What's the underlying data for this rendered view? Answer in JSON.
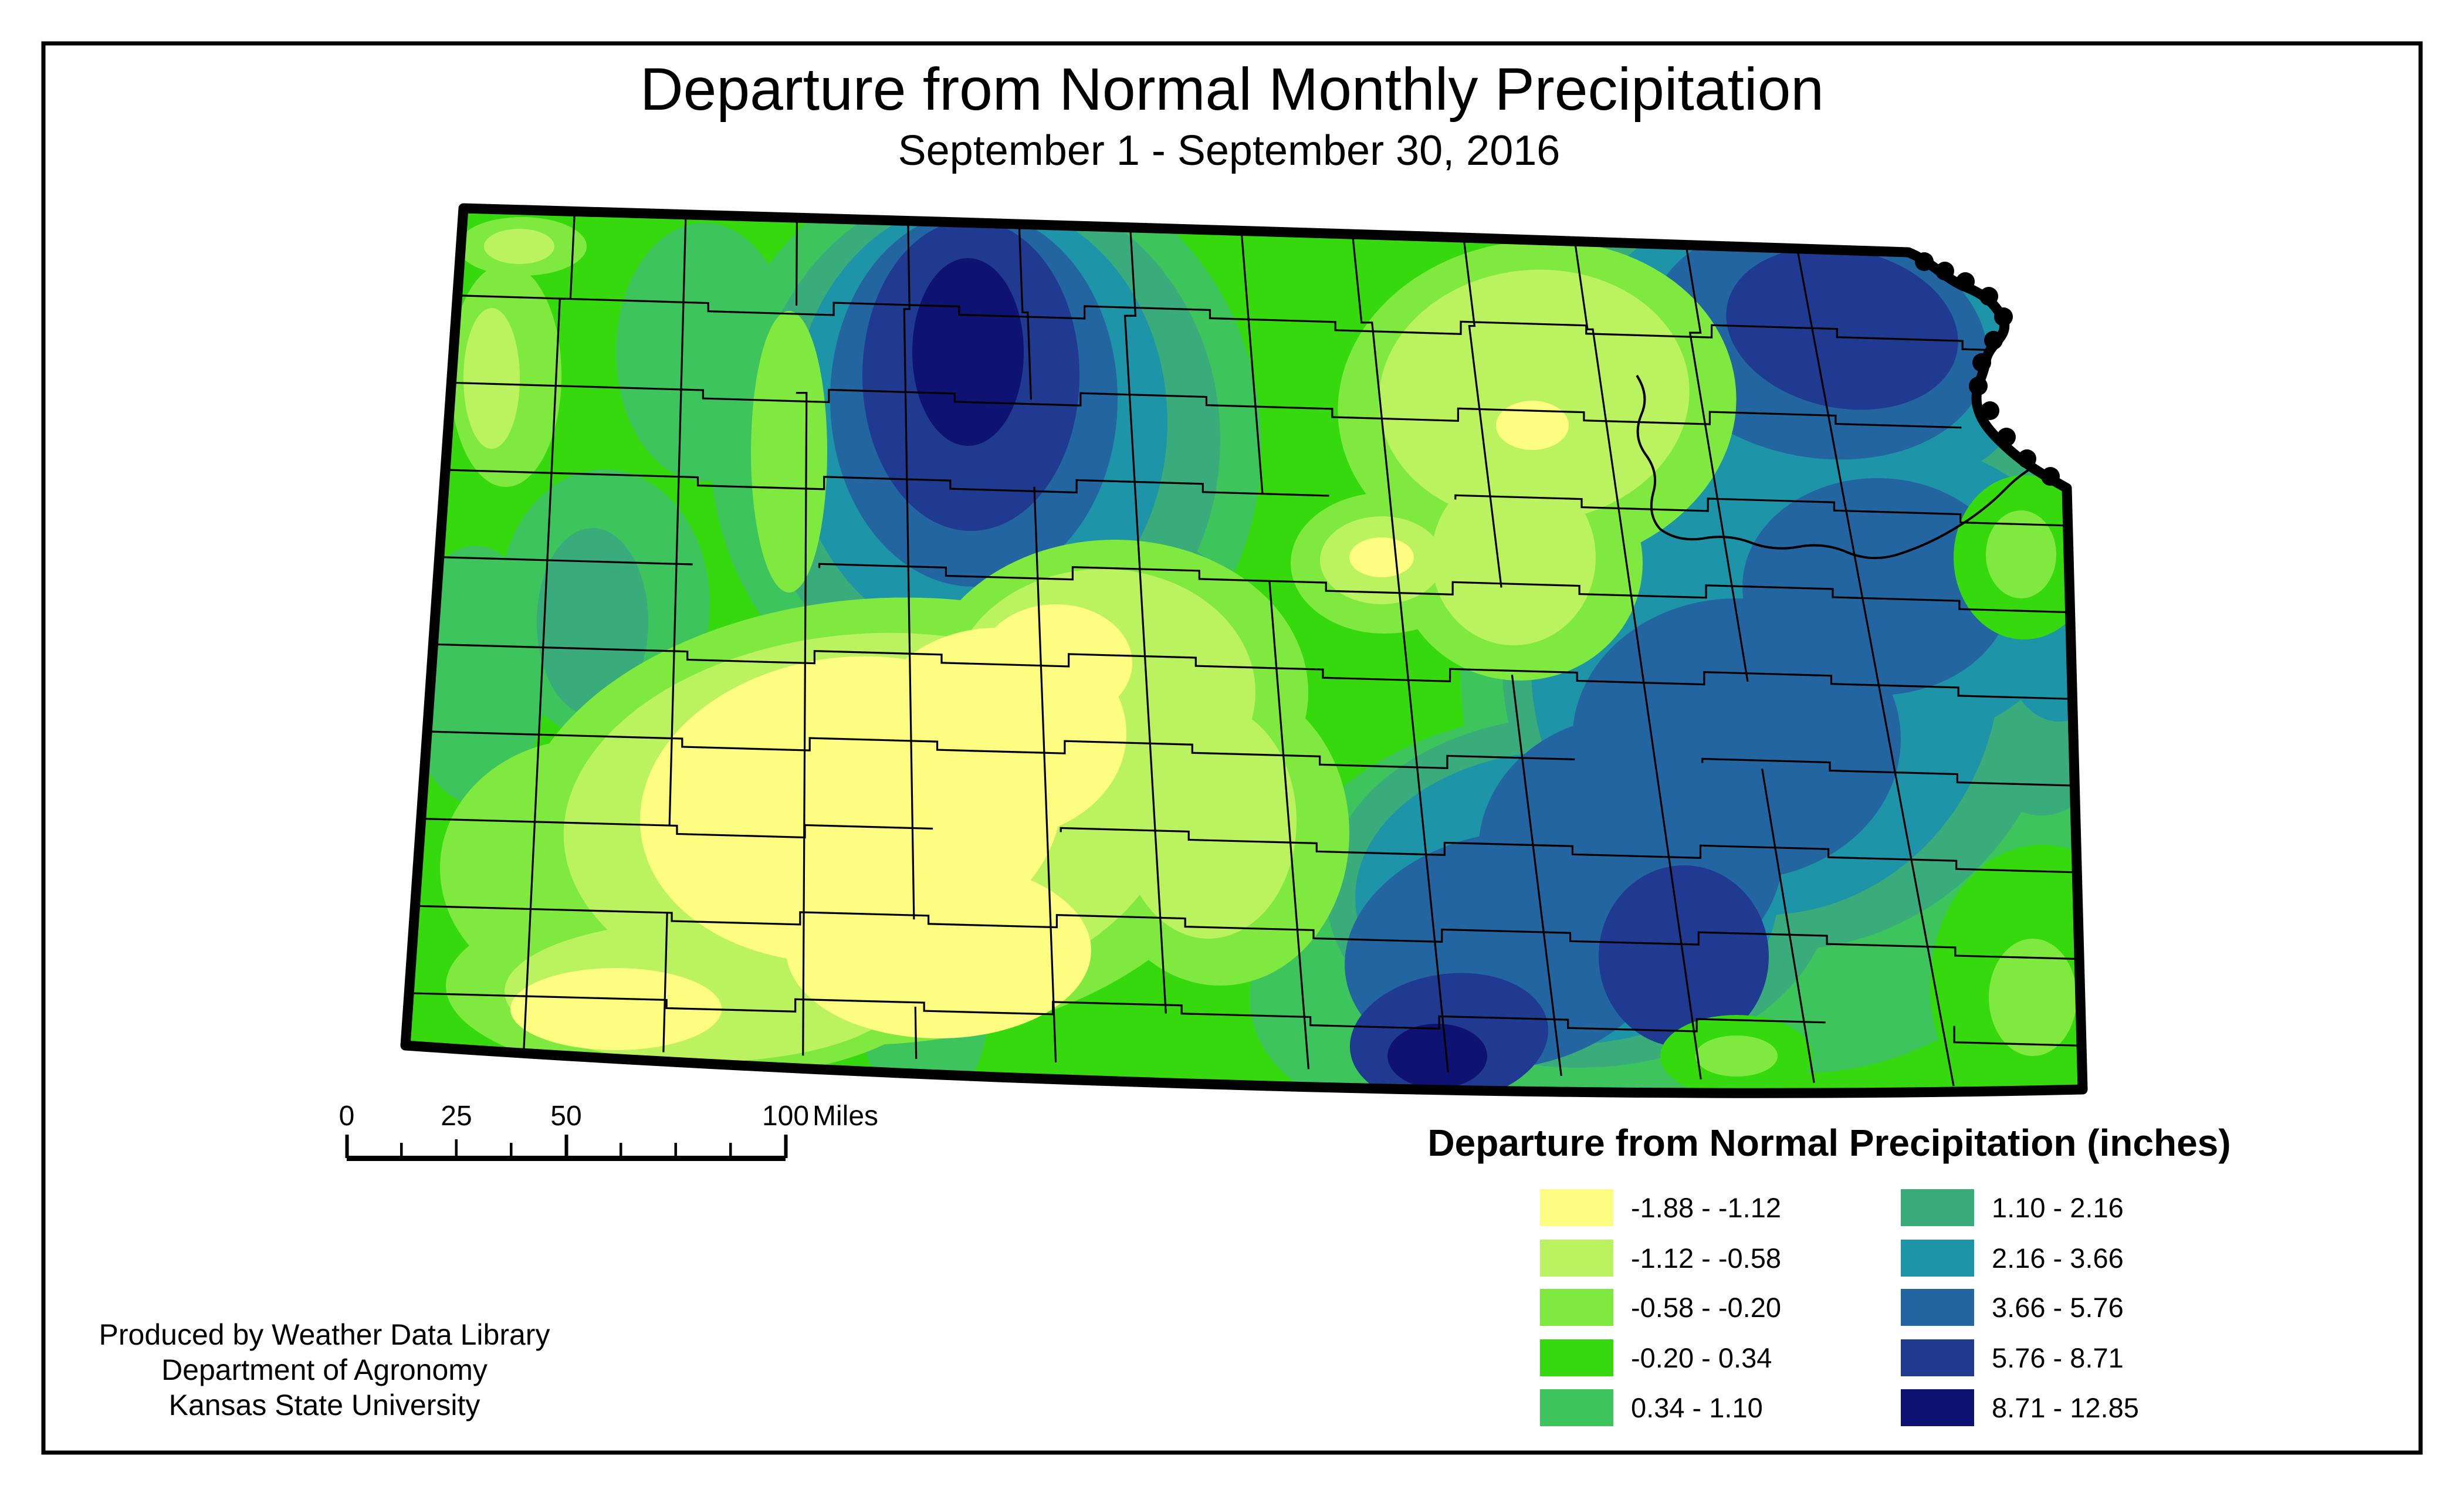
{
  "title": "Departure from Normal Monthly Precipitation",
  "subtitle": "September 1 - September 30, 2016",
  "legend": {
    "title": "Departure from Normal Precipitation (inches)",
    "items": [
      {
        "label": "-1.88 - -1.12",
        "color": "#FDFD82"
      },
      {
        "label": "-1.12 - -0.58",
        "color": "#BBF25F"
      },
      {
        "label": "-0.58 - -0.20",
        "color": "#7FE93F"
      },
      {
        "label": "-0.20 - 0.34",
        "color": "#36D90E"
      },
      {
        "label": "0.34 - 1.10",
        "color": "#3EC45C"
      },
      {
        "label": "1.10 - 2.16",
        "color": "#3AAC7C"
      },
      {
        "label": "2.16 - 3.66",
        "color": "#1E94A8"
      },
      {
        "label": "3.66 - 5.76",
        "color": "#2365A0"
      },
      {
        "label": "5.76 - 8.71",
        "color": "#1F3A90"
      },
      {
        "label": "8.71 - 12.85",
        "color": "#0E1272"
      }
    ]
  },
  "scale_bar": {
    "labels": [
      "0",
      "25",
      "50",
      "100"
    ],
    "unit": "Miles"
  },
  "attribution": {
    "lines": [
      "Produced by Weather Data Library",
      "Department of Agronomy",
      "Kansas State University"
    ]
  },
  "colors": {
    "border": "#000000",
    "background": "#ffffff"
  }
}
